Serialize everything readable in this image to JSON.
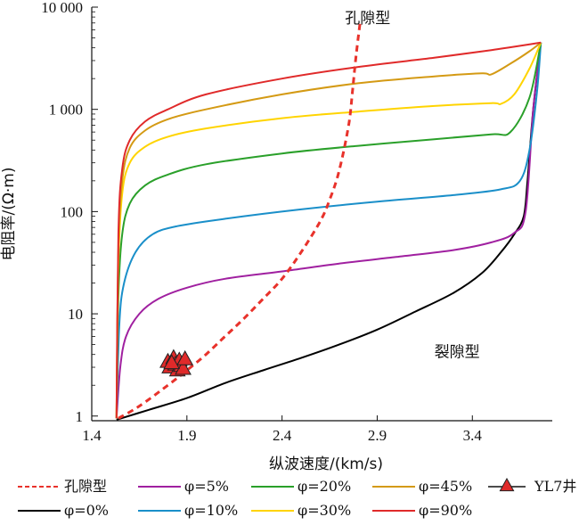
{
  "chart_data": {
    "type": "line",
    "xlabel": "纵波速度/(km/s)",
    "ylabel": "电阻率/(Ω·m)",
    "xlim": [
      1.4,
      3.82
    ],
    "ylim": [
      0.9,
      10000
    ],
    "y_scale": "log",
    "x_ticks": [
      1.4,
      1.9,
      2.4,
      2.9,
      3.4
    ],
    "x_tick_labels": [
      "1.4",
      "1.9",
      "2.4",
      "2.9",
      "3.4"
    ],
    "y_ticks": [
      1,
      10,
      100,
      1000,
      10000
    ],
    "y_tick_labels": [
      "1",
      "10",
      "100",
      "1 000",
      "10 000"
    ],
    "annotations": [
      {
        "text": "孔隙型",
        "x": 2.85,
        "y": 7000
      },
      {
        "text": "裂隙型",
        "x": 3.32,
        "y": 3.8
      }
    ],
    "legend_position": "bottom",
    "series": [
      {
        "name": "孔隙型",
        "color": "#e8322b",
        "dash": true,
        "points": [
          [
            1.54,
            0.95
          ],
          [
            1.65,
            1.25
          ],
          [
            1.8,
            2.0
          ],
          [
            1.9,
            2.8
          ],
          [
            2.0,
            4.0
          ],
          [
            2.1,
            6.0
          ],
          [
            2.2,
            9.0
          ],
          [
            2.3,
            14
          ],
          [
            2.4,
            22
          ],
          [
            2.5,
            40
          ],
          [
            2.6,
            80
          ],
          [
            2.65,
            130
          ],
          [
            2.7,
            250
          ],
          [
            2.75,
            700
          ],
          [
            2.77,
            1500
          ],
          [
            2.79,
            3500
          ],
          [
            2.81,
            7000
          ]
        ]
      },
      {
        "name": "φ=0%",
        "color": "#000000",
        "points": [
          [
            1.53,
            0.92
          ],
          [
            1.7,
            1.15
          ],
          [
            1.9,
            1.5
          ],
          [
            2.1,
            2.1
          ],
          [
            2.3,
            2.8
          ],
          [
            2.5,
            3.7
          ],
          [
            2.7,
            5.0
          ],
          [
            2.9,
            7.0
          ],
          [
            3.1,
            10.5
          ],
          [
            3.3,
            16
          ],
          [
            3.45,
            25
          ],
          [
            3.55,
            40
          ],
          [
            3.62,
            60
          ],
          [
            3.67,
            90
          ],
          [
            3.69,
            200
          ],
          [
            3.72,
            1000
          ],
          [
            3.76,
            4500
          ]
        ]
      },
      {
        "name": "φ=5%",
        "color": "#a020a0",
        "points": [
          [
            1.53,
            0.95
          ],
          [
            1.55,
            3
          ],
          [
            1.58,
            6
          ],
          [
            1.65,
            10
          ],
          [
            1.75,
            14
          ],
          [
            1.9,
            18
          ],
          [
            2.1,
            22
          ],
          [
            2.4,
            26
          ],
          [
            2.7,
            31
          ],
          [
            3.0,
            36
          ],
          [
            3.3,
            42
          ],
          [
            3.5,
            50
          ],
          [
            3.62,
            62
          ],
          [
            3.68,
            100
          ],
          [
            3.72,
            1000
          ],
          [
            3.76,
            4500
          ]
        ]
      },
      {
        "name": "φ=10%",
        "color": "#1a8fc9",
        "points": [
          [
            1.53,
            0.95
          ],
          [
            1.545,
            8
          ],
          [
            1.57,
            20
          ],
          [
            1.63,
            40
          ],
          [
            1.72,
            60
          ],
          [
            1.85,
            72
          ],
          [
            2.1,
            85
          ],
          [
            2.5,
            105
          ],
          [
            2.9,
            125
          ],
          [
            3.3,
            145
          ],
          [
            3.55,
            165
          ],
          [
            3.65,
            200
          ],
          [
            3.7,
            400
          ],
          [
            3.74,
            1500
          ],
          [
            3.76,
            4500
          ]
        ]
      },
      {
        "name": "φ=20%",
        "color": "#2aa02a",
        "points": [
          [
            1.53,
            0.95
          ],
          [
            1.54,
            15
          ],
          [
            1.56,
            60
          ],
          [
            1.6,
            120
          ],
          [
            1.68,
            180
          ],
          [
            1.8,
            230
          ],
          [
            2.0,
            290
          ],
          [
            2.4,
            370
          ],
          [
            2.8,
            440
          ],
          [
            3.2,
            510
          ],
          [
            3.5,
            570
          ],
          [
            3.6,
            600
          ],
          [
            3.7,
            1300
          ],
          [
            3.76,
            4500
          ]
        ]
      },
      {
        "name": "φ=30%",
        "color": "#ffd400",
        "points": [
          [
            1.53,
            0.95
          ],
          [
            1.54,
            30
          ],
          [
            1.56,
            150
          ],
          [
            1.6,
            300
          ],
          [
            1.68,
            430
          ],
          [
            1.8,
            540
          ],
          [
            2.0,
            650
          ],
          [
            2.4,
            820
          ],
          [
            2.8,
            950
          ],
          [
            3.2,
            1080
          ],
          [
            3.5,
            1150
          ],
          [
            3.55,
            1130
          ],
          [
            3.62,
            1400
          ],
          [
            3.7,
            2500
          ],
          [
            3.76,
            4500
          ]
        ]
      },
      {
        "name": "φ=45%",
        "color": "#d49a14",
        "points": [
          [
            1.53,
            0.95
          ],
          [
            1.54,
            40
          ],
          [
            1.56,
            200
          ],
          [
            1.6,
            420
          ],
          [
            1.68,
            620
          ],
          [
            1.8,
            800
          ],
          [
            2.0,
            1000
          ],
          [
            2.4,
            1400
          ],
          [
            2.8,
            1800
          ],
          [
            3.2,
            2100
          ],
          [
            3.45,
            2250
          ],
          [
            3.5,
            2200
          ],
          [
            3.6,
            2800
          ],
          [
            3.7,
            3700
          ],
          [
            3.76,
            4500
          ]
        ]
      },
      {
        "name": "φ=90%",
        "color": "#e02a2a",
        "points": [
          [
            1.53,
            0.95
          ],
          [
            1.54,
            60
          ],
          [
            1.56,
            260
          ],
          [
            1.6,
            500
          ],
          [
            1.68,
            760
          ],
          [
            1.8,
            1000
          ],
          [
            2.0,
            1400
          ],
          [
            2.4,
            2000
          ],
          [
            2.8,
            2600
          ],
          [
            3.2,
            3200
          ],
          [
            3.5,
            3800
          ],
          [
            3.76,
            4500
          ]
        ]
      }
    ],
    "markers": {
      "name": "YL7井",
      "color": "#e02a2a",
      "points": [
        [
          1.8,
          3.4
        ],
        [
          1.81,
          3.0
        ],
        [
          1.83,
          3.7
        ],
        [
          1.84,
          3.2
        ],
        [
          1.85,
          2.8
        ],
        [
          1.86,
          3.5
        ],
        [
          1.87,
          3.1
        ],
        [
          1.88,
          2.9
        ],
        [
          1.82,
          3.3
        ],
        [
          1.89,
          3.6
        ]
      ]
    },
    "legend": [
      {
        "name": "孔隙型",
        "color": "#e8322b",
        "style": "dash"
      },
      {
        "name": "φ=5%",
        "color": "#a020a0",
        "style": "line"
      },
      {
        "name": "φ=20%",
        "color": "#2aa02a",
        "style": "line"
      },
      {
        "name": "φ=45%",
        "color": "#d49a14",
        "style": "line"
      },
      {
        "name": "YL7井",
        "color": "#e02a2a",
        "style": "marker"
      },
      {
        "name": "φ=0%",
        "color": "#000000",
        "style": "line"
      },
      {
        "name": "φ=10%",
        "color": "#1a8fc9",
        "style": "line"
      },
      {
        "name": "φ=30%",
        "color": "#ffd400",
        "style": "line"
      },
      {
        "name": "φ=90%",
        "color": "#e02a2a",
        "style": "line"
      }
    ]
  }
}
